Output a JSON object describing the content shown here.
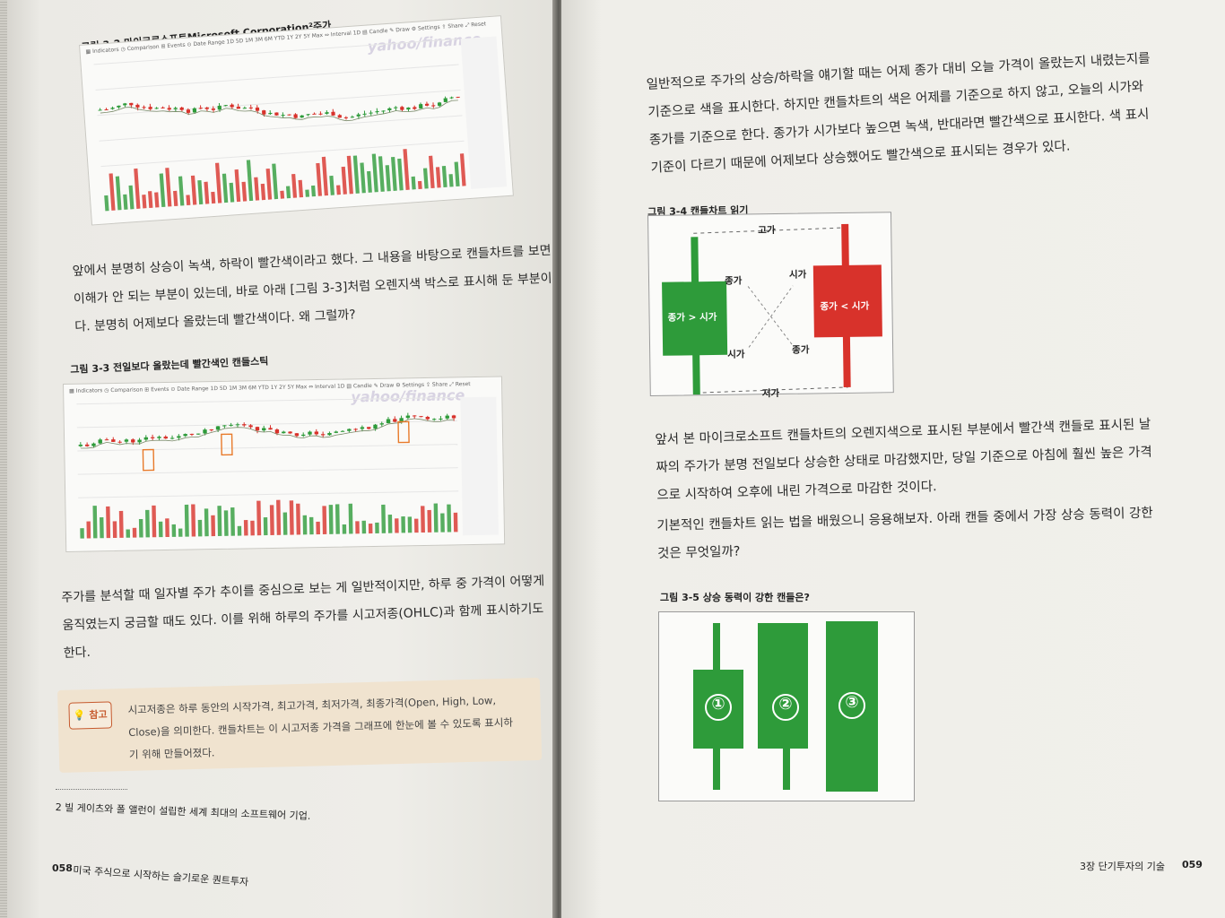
{
  "left_page": {
    "figure_2_caption": "그림 3-2 마이크로소프트Microsoft Corporation²주가",
    "chart_watermark": "yahoo/finance",
    "paragraph_1": [
      "앞에서 분명히 상승이 녹색, 하락이 빨간색이라고 했다. 그 내용을 바탕으로 캔들차트를 보면",
      "이해가 안 되는 부분이 있는데, 바로 아래 [그림 3-3]처럼 오렌지색 박스로 표시해 둔 부분이",
      "다. 분명히 어제보다 올랐는데 빨간색이다. 왜 그럴까?"
    ],
    "figure_3_caption": "그림 3-3 전일보다 올랐는데 빨간색인 캔들스틱",
    "paragraph_2": [
      "주가를 분석할 때 일자별 주가 추이를 중심으로 보는 게 일반적이지만, 하루 중 가격이 어떻게",
      "움직였는지 궁금할 때도 있다. 이를 위해 하루의 주가를 시고저종(OHLC)과 함께 표시하기도",
      "한다."
    ],
    "note_label": "참고",
    "note_lines": [
      "시고저종은 하루 동안의 시작가격, 최고가격, 최저가격, 최종가격(Open, High, Low,",
      "Close)을 의미한다. 캔들차트는 이 시고저종 가격을 그래프에 한눈에 볼 수 있도록 표시하",
      "기 위해 만들어졌다."
    ],
    "footnote": "2  빌 게이츠와 폴 앨런이 설립한 세계 최대의 소프트웨어 기업.",
    "page_number": "058",
    "book_title": "미국 주식으로 시작하는 슬기로운 퀀트투자"
  },
  "right_page": {
    "paragraph_1": [
      "일반적으로 주가의 상승/하락을 얘기할 때는 어제 종가 대비 오늘 가격이 올랐는지 내렸는지를",
      "기준으로 색을 표시한다. 하지만 캔들차트의 색은 어제를 기준으로 하지 않고, 오늘의 시가와",
      "종가를 기준으로 한다. 종가가 시가보다 높으면 녹색, 반대라면 빨간색으로 표시한다. 색 표시",
      "기준이 다르기 때문에 어제보다 상승했어도 빨간색으로 표시되는 경우가 있다."
    ],
    "figure_4_caption": "그림 3-4 캔들차트 읽기",
    "fig4": {
      "high": "고가",
      "low": "저가",
      "close_top": "종가",
      "open_bottom": "시가",
      "open_top": "시가",
      "close_bottom": "종가",
      "green_label": "종가 > 시가",
      "red_label": "종가 < 시가",
      "green": "#2e9b3a",
      "red": "#d8322b"
    },
    "paragraph_2": [
      "앞서 본 마이크로소프트 캔들차트의 오렌지색으로 표시된 부분에서 빨간색 캔들로 표시된 날",
      "짜의 주가가 분명 전일보다 상승한 상태로 마감했지만, 당일 기준으로 아침에 훨씬 높은 가격",
      "으로 시작하여 오후에 내린 가격으로 마감한 것이다."
    ],
    "paragraph_3": [
      "기본적인 캔들차트 읽는 법을 배웠으니 응용해보자. 아래 캔들 중에서 가장 상승 동력이 강한",
      "것은 무엇일까?"
    ],
    "figure_5_caption": "그림 3-5 상승 동력이 강한 캔들은?",
    "fig5_labels": [
      "①",
      "②",
      "③"
    ],
    "chapter_label": "3장 단기투자의 기술",
    "page_number": "059"
  }
}
